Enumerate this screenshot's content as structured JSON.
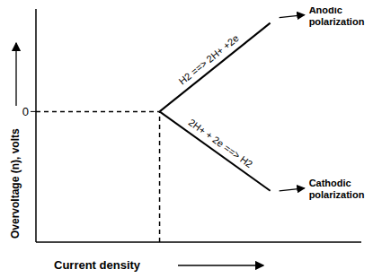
{
  "chart_data": {
    "type": "line",
    "x_label": "Current density",
    "y_label": "Overvoltage (n), volts",
    "xlim": [
      0,
      7.5
    ],
    "ylim": [
      -2.8,
      2.2
    ],
    "yticks": [
      0
    ],
    "tick_labels": "y",
    "series": [
      {
        "name": "Anodic polarization",
        "equation": "H2 ==> 2H+ +2e",
        "color": "#000000",
        "line_style": "solid",
        "x": [
          2.85,
          5.4
        ],
        "values": [
          0,
          1.9
        ]
      },
      {
        "name": "Cathodic polarization",
        "equation": "2H+ + 2e ==> H2",
        "color": "#000000",
        "line_style": "solid",
        "x": [
          2.85,
          5.4
        ],
        "values": [
          0,
          -1.7
        ]
      }
    ],
    "guide_lines": [
      {
        "x": [
          0,
          2.85
        ],
        "values": [
          0,
          0
        ],
        "color": "#000000",
        "line_style": "dashed"
      },
      {
        "x": [
          2.85,
          2.85
        ],
        "values": [
          -2.8,
          0
        ],
        "color": "#000000",
        "line_style": "dashed"
      }
    ]
  }
}
